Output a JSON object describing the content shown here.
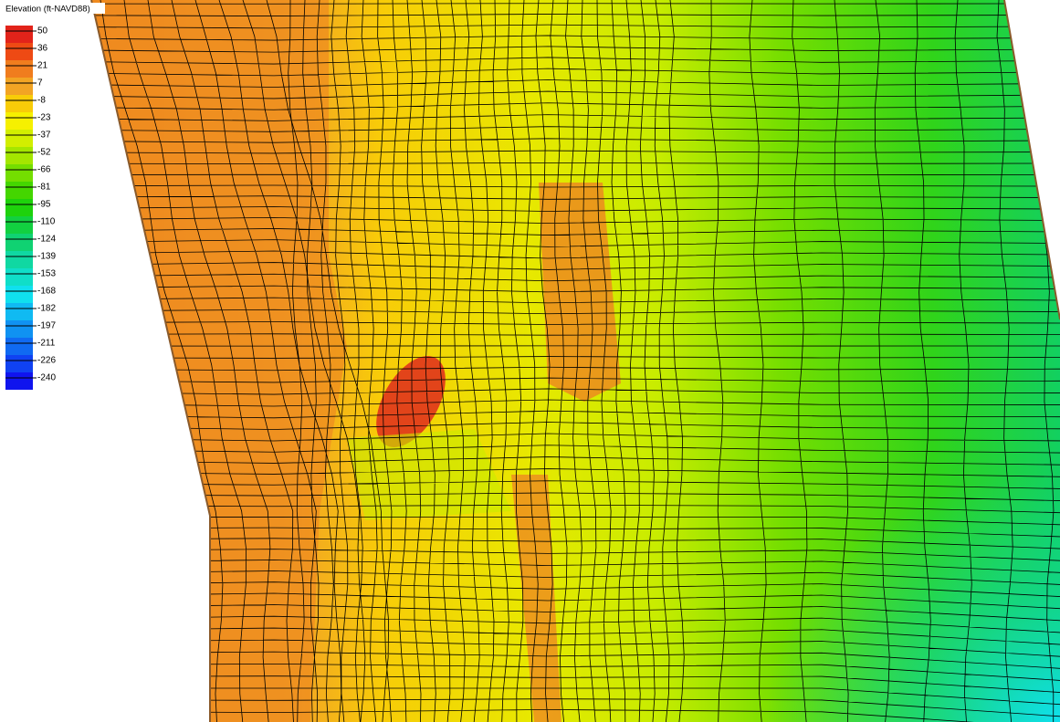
{
  "legend": {
    "title": "Elevation (ft-NAVD88)",
    "entries": [
      {
        "label": "50",
        "color": "#e2231a"
      },
      {
        "label": "36",
        "color": "#ee4a14"
      },
      {
        "label": "21",
        "color": "#f07d1e"
      },
      {
        "label": "7",
        "color": "#f2a424"
      },
      {
        "label": "-8",
        "color": "#f8cc08"
      },
      {
        "label": "-23",
        "color": "#f6f000"
      },
      {
        "label": "-37",
        "color": "#d2ee00"
      },
      {
        "label": "-52",
        "color": "#a4e600"
      },
      {
        "label": "-66",
        "color": "#74de00"
      },
      {
        "label": "-81",
        "color": "#44d600"
      },
      {
        "label": "-95",
        "color": "#1ed20c"
      },
      {
        "label": "-110",
        "color": "#12d040"
      },
      {
        "label": "-124",
        "color": "#10d272"
      },
      {
        "label": "-139",
        "color": "#10d8a2"
      },
      {
        "label": "-153",
        "color": "#10dec8"
      },
      {
        "label": "-168",
        "color": "#10e0ee"
      },
      {
        "label": "-182",
        "color": "#10baf2"
      },
      {
        "label": "-197",
        "color": "#1092f2"
      },
      {
        "label": "-211",
        "color": "#106af2"
      },
      {
        "label": "-226",
        "color": "#1042f2"
      },
      {
        "label": "-240",
        "color": "#1014ee"
      }
    ]
  }
}
